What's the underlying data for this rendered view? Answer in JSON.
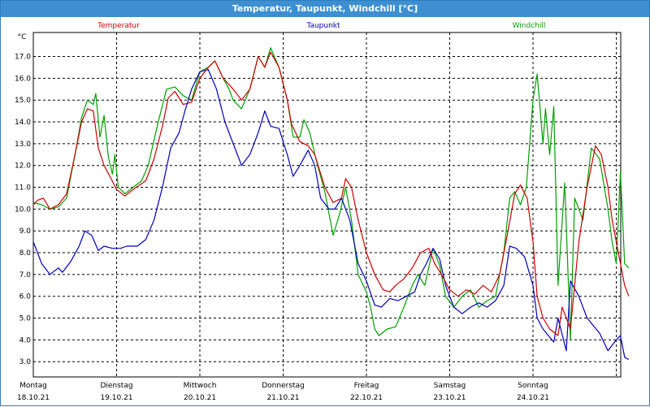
{
  "title": "Temperatur, Taupunkt, Windchill [°C]",
  "colors": {
    "title_bar": "#3d8fd1",
    "temperature": "#cc0000",
    "dewpoint": "#0000bb",
    "windchill": "#00a000",
    "grid": "#000000"
  },
  "chart_data": {
    "type": "line",
    "y_unit": "°C",
    "ylim": [
      2.3,
      18.1
    ],
    "xlim": [
      0,
      7
    ],
    "grid": true,
    "grid_style": "dashed",
    "legend_position": "top",
    "y_ticks": [
      "17.0",
      "16.0",
      "15.0",
      "14.0",
      "13.0",
      "12.0",
      "11.0",
      "10.0",
      "9.0",
      "8.0",
      "7.0",
      "6.0",
      "5.0",
      "4.0",
      "3.0"
    ],
    "x_ticks": [
      {
        "day": "Montag",
        "date": "18.10.21"
      },
      {
        "day": "Dienstag",
        "date": "19.10.21"
      },
      {
        "day": "Mittwoch",
        "date": "20.10.21"
      },
      {
        "day": "Donnerstag",
        "date": "21.10.21"
      },
      {
        "day": "Freitag",
        "date": "22.10.21"
      },
      {
        "day": "Samstag",
        "date": "23.10.21"
      },
      {
        "day": "Sonntag",
        "date": "24.10.21"
      }
    ],
    "series": [
      {
        "name": "Temperatur",
        "color": "#cc0000",
        "points": [
          [
            0,
            10.2
          ],
          [
            0.05,
            10.4
          ],
          [
            0.12,
            10.5
          ],
          [
            0.2,
            10
          ],
          [
            0.3,
            10.2
          ],
          [
            0.4,
            10.7
          ],
          [
            0.5,
            12.5
          ],
          [
            0.58,
            14
          ],
          [
            0.65,
            14.6
          ],
          [
            0.72,
            14.5
          ],
          [
            0.78,
            12.8
          ],
          [
            0.85,
            12
          ],
          [
            0.92,
            11.5
          ],
          [
            1.0,
            10.9
          ],
          [
            1.1,
            10.6
          ],
          [
            1.2,
            10.9
          ],
          [
            1.35,
            11.3
          ],
          [
            1.45,
            12.3
          ],
          [
            1.55,
            13.8
          ],
          [
            1.62,
            15.1
          ],
          [
            1.7,
            15.4
          ],
          [
            1.8,
            14.8
          ],
          [
            1.9,
            14.9
          ],
          [
            2.0,
            16
          ],
          [
            2.1,
            16.5
          ],
          [
            2.18,
            16.8
          ],
          [
            2.28,
            16
          ],
          [
            2.4,
            15.5
          ],
          [
            2.5,
            15
          ],
          [
            2.6,
            15.5
          ],
          [
            2.7,
            17
          ],
          [
            2.78,
            16.5
          ],
          [
            2.85,
            17.2
          ],
          [
            2.95,
            16.5
          ],
          [
            3.05,
            15
          ],
          [
            3.1,
            13.9
          ],
          [
            3.2,
            13.1
          ],
          [
            3.3,
            12.9
          ],
          [
            3.38,
            12.5
          ],
          [
            3.5,
            11
          ],
          [
            3.6,
            10.3
          ],
          [
            3.7,
            10.5
          ],
          [
            3.75,
            11.4
          ],
          [
            3.82,
            11
          ],
          [
            3.9,
            9.5
          ],
          [
            4.0,
            8
          ],
          [
            4.1,
            7
          ],
          [
            4.2,
            6.3
          ],
          [
            4.28,
            6.2
          ],
          [
            4.35,
            6.5
          ],
          [
            4.45,
            6.8
          ],
          [
            4.55,
            7.3
          ],
          [
            4.65,
            8
          ],
          [
            4.75,
            8.2
          ],
          [
            4.82,
            7.5
          ],
          [
            4.9,
            7
          ],
          [
            5.0,
            6.3
          ],
          [
            5.1,
            6
          ],
          [
            5.2,
            6.3
          ],
          [
            5.3,
            6.1
          ],
          [
            5.4,
            6.5
          ],
          [
            5.5,
            6.2
          ],
          [
            5.6,
            7
          ],
          [
            5.7,
            9
          ],
          [
            5.78,
            10.7
          ],
          [
            5.85,
            11.1
          ],
          [
            5.93,
            10.5
          ],
          [
            6.0,
            8.5
          ],
          [
            6.05,
            6
          ],
          [
            6.12,
            5
          ],
          [
            6.2,
            4.5
          ],
          [
            6.3,
            4.2
          ],
          [
            6.35,
            5.5
          ],
          [
            6.45,
            4.5
          ],
          [
            6.55,
            8.5
          ],
          [
            6.65,
            11
          ],
          [
            6.75,
            12.9
          ],
          [
            6.82,
            12.5
          ],
          [
            6.9,
            11
          ],
          [
            6.95,
            9.5
          ],
          [
            7.0,
            8.5
          ],
          [
            7.1,
            6.5
          ],
          [
            7.15,
            6
          ]
        ]
      },
      {
        "name": "Taupunkt",
        "color": "#0000bb",
        "points": [
          [
            0,
            8.5
          ],
          [
            0.1,
            7.5
          ],
          [
            0.2,
            7
          ],
          [
            0.3,
            7.3
          ],
          [
            0.35,
            7.1
          ],
          [
            0.45,
            7.6
          ],
          [
            0.55,
            8.3
          ],
          [
            0.62,
            9
          ],
          [
            0.7,
            8.8
          ],
          [
            0.78,
            8.1
          ],
          [
            0.85,
            8.3
          ],
          [
            0.95,
            8.2
          ],
          [
            1.05,
            8.2
          ],
          [
            1.12,
            8.3
          ],
          [
            1.25,
            8.3
          ],
          [
            1.35,
            8.6
          ],
          [
            1.45,
            9.5
          ],
          [
            1.55,
            11
          ],
          [
            1.65,
            12.8
          ],
          [
            1.75,
            13.5
          ],
          [
            1.82,
            14.5
          ],
          [
            1.9,
            15.5
          ],
          [
            2.0,
            16.3
          ],
          [
            2.1,
            16.4
          ],
          [
            2.2,
            15.5
          ],
          [
            2.3,
            14
          ],
          [
            2.4,
            13
          ],
          [
            2.5,
            12
          ],
          [
            2.6,
            12.5
          ],
          [
            2.7,
            13.5
          ],
          [
            2.78,
            14.5
          ],
          [
            2.85,
            13.8
          ],
          [
            2.95,
            13.7
          ],
          [
            3.05,
            12.5
          ],
          [
            3.12,
            11.5
          ],
          [
            3.2,
            12
          ],
          [
            3.3,
            12.7
          ],
          [
            3.38,
            12
          ],
          [
            3.45,
            10.5
          ],
          [
            3.55,
            10
          ],
          [
            3.62,
            10
          ],
          [
            3.7,
            10.5
          ],
          [
            3.8,
            9.5
          ],
          [
            3.9,
            7.5
          ],
          [
            4.0,
            6.7
          ],
          [
            4.1,
            5.6
          ],
          [
            4.18,
            5.5
          ],
          [
            4.28,
            5.9
          ],
          [
            4.38,
            5.8
          ],
          [
            4.48,
            6
          ],
          [
            4.58,
            6.2
          ],
          [
            4.65,
            7
          ],
          [
            4.72,
            7.5
          ],
          [
            4.8,
            8.2
          ],
          [
            4.88,
            7.7
          ],
          [
            4.95,
            6.5
          ],
          [
            5.05,
            5.5
          ],
          [
            5.15,
            5.2
          ],
          [
            5.25,
            5.5
          ],
          [
            5.35,
            5.7
          ],
          [
            5.45,
            5.5
          ],
          [
            5.55,
            5.8
          ],
          [
            5.65,
            6.5
          ],
          [
            5.72,
            8.3
          ],
          [
            5.8,
            8.2
          ],
          [
            5.9,
            7.8
          ],
          [
            6.0,
            6.5
          ],
          [
            6.05,
            5
          ],
          [
            6.12,
            4.5
          ],
          [
            6.25,
            3.9
          ],
          [
            6.3,
            5
          ],
          [
            6.4,
            3.5
          ],
          [
            6.45,
            6.7
          ],
          [
            6.55,
            6
          ],
          [
            6.65,
            5
          ],
          [
            6.8,
            4.3
          ],
          [
            6.9,
            3.5
          ],
          [
            7.0,
            4
          ],
          [
            7.05,
            4.2
          ],
          [
            7.1,
            3.2
          ],
          [
            7.15,
            3.1
          ]
        ]
      },
      {
        "name": "Windchill",
        "color": "#00a000",
        "points": [
          [
            0,
            10.3
          ],
          [
            0.1,
            10.2
          ],
          [
            0.2,
            10
          ],
          [
            0.3,
            10.1
          ],
          [
            0.4,
            10.5
          ],
          [
            0.5,
            12.5
          ],
          [
            0.58,
            14.2
          ],
          [
            0.65,
            15
          ],
          [
            0.72,
            14.8
          ],
          [
            0.75,
            15.3
          ],
          [
            0.8,
            13.3
          ],
          [
            0.85,
            14.3
          ],
          [
            0.9,
            12.4
          ],
          [
            0.95,
            11.6
          ],
          [
            0.98,
            12.5
          ],
          [
            1.02,
            11
          ],
          [
            1.1,
            10.7
          ],
          [
            1.2,
            11
          ],
          [
            1.3,
            11.3
          ],
          [
            1.38,
            12
          ],
          [
            1.5,
            14
          ],
          [
            1.6,
            15.5
          ],
          [
            1.7,
            15.6
          ],
          [
            1.8,
            15.2
          ],
          [
            1.9,
            15
          ],
          [
            2.0,
            16.3
          ],
          [
            2.1,
            16.5
          ],
          [
            2.18,
            16.8
          ],
          [
            2.28,
            16
          ],
          [
            2.35,
            15.5
          ],
          [
            2.4,
            15
          ],
          [
            2.5,
            14.6
          ],
          [
            2.6,
            15.5
          ],
          [
            2.7,
            17
          ],
          [
            2.78,
            16.5
          ],
          [
            2.85,
            17.4
          ],
          [
            2.95,
            16.5
          ],
          [
            3.05,
            15
          ],
          [
            3.12,
            13.3
          ],
          [
            3.2,
            13.3
          ],
          [
            3.25,
            14.1
          ],
          [
            3.32,
            13.5
          ],
          [
            3.4,
            12.2
          ],
          [
            3.5,
            10.8
          ],
          [
            3.6,
            8.8
          ],
          [
            3.68,
            9.8
          ],
          [
            3.75,
            11
          ],
          [
            3.82,
            9.5
          ],
          [
            3.9,
            7
          ],
          [
            4.0,
            6.2
          ],
          [
            4.05,
            5.5
          ],
          [
            4.1,
            4.5
          ],
          [
            4.15,
            4.2
          ],
          [
            4.25,
            4.5
          ],
          [
            4.35,
            4.6
          ],
          [
            4.45,
            5.5
          ],
          [
            4.55,
            6.5
          ],
          [
            4.62,
            7
          ],
          [
            4.7,
            6.5
          ],
          [
            4.8,
            8.2
          ],
          [
            4.88,
            7.4
          ],
          [
            4.95,
            6
          ],
          [
            5.05,
            5.5
          ],
          [
            5.15,
            6
          ],
          [
            5.25,
            6.3
          ],
          [
            5.35,
            5.5
          ],
          [
            5.45,
            5.8
          ],
          [
            5.55,
            6
          ],
          [
            5.65,
            8
          ],
          [
            5.72,
            10.5
          ],
          [
            5.78,
            10.8
          ],
          [
            5.85,
            10.2
          ],
          [
            5.92,
            11
          ],
          [
            6.0,
            15
          ],
          [
            6.05,
            16.2
          ],
          [
            6.12,
            13
          ],
          [
            6.15,
            14.6
          ],
          [
            6.2,
            12.5
          ],
          [
            6.25,
            14.7
          ],
          [
            6.3,
            6.5
          ],
          [
            6.38,
            11.2
          ],
          [
            6.45,
            4
          ],
          [
            6.5,
            10.5
          ],
          [
            6.6,
            9.5
          ],
          [
            6.7,
            12.8
          ],
          [
            6.8,
            12.3
          ],
          [
            6.9,
            10
          ],
          [
            6.95,
            8.5
          ],
          [
            7.0,
            7.5
          ],
          [
            7.05,
            11.7
          ],
          [
            7.1,
            7.5
          ],
          [
            7.15,
            7.3
          ]
        ]
      }
    ]
  }
}
